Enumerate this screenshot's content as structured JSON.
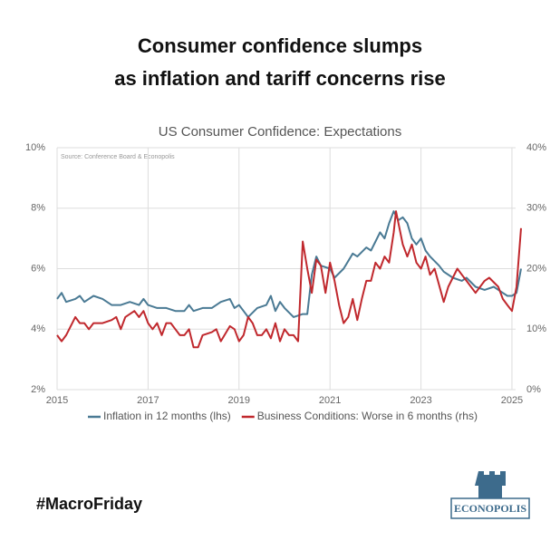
{
  "headline": [
    "Consumer confidence slumps",
    "as inflation and tariff concerns rise"
  ],
  "hashtag": "#MacroFriday",
  "logo": "ECONOPOLIS",
  "chart_data": {
    "type": "line",
    "title": "US Consumer Confidence: Expectations",
    "source": "Source: Conference Board & Econopolis",
    "xlim": [
      2015,
      2025.2
    ],
    "xticks": [
      2015,
      2017,
      2019,
      2021,
      2023,
      2025
    ],
    "ylim": [
      2,
      10
    ],
    "yticks": [
      {
        "value": 2,
        "label": "2%"
      },
      {
        "value": 4,
        "label": "4%"
      },
      {
        "value": 6,
        "label": "6%"
      },
      {
        "value": 8,
        "label": "8%"
      },
      {
        "value": 10,
        "label": "10%"
      }
    ],
    "y2lim": [
      0,
      40
    ],
    "y2ticks": [
      {
        "value": 0,
        "label": "0%"
      },
      {
        "value": 10,
        "label": "10%"
      },
      {
        "value": 20,
        "label": "20%"
      },
      {
        "value": 30,
        "label": "30%"
      },
      {
        "value": 40,
        "label": "40%"
      }
    ],
    "grid": true,
    "legend": "bottom",
    "series": [
      {
        "name": "Inflation in 12 months (lhs)",
        "color": "#4a7a94",
        "axis": "y",
        "x": [
          2015.0,
          2015.1,
          2015.2,
          2015.4,
          2015.5,
          2015.6,
          2015.8,
          2016.0,
          2016.2,
          2016.4,
          2016.6,
          2016.8,
          2016.9,
          2017.0,
          2017.2,
          2017.4,
          2017.6,
          2017.8,
          2017.9,
          2018.0,
          2018.2,
          2018.4,
          2018.6,
          2018.8,
          2018.9,
          2019.0,
          2019.1,
          2019.2,
          2019.4,
          2019.6,
          2019.7,
          2019.8,
          2019.9,
          2020.0,
          2020.2,
          2020.4,
          2020.5,
          2020.6,
          2020.7,
          2020.8,
          2021.0,
          2021.1,
          2021.3,
          2021.5,
          2021.6,
          2021.8,
          2021.9,
          2022.0,
          2022.1,
          2022.2,
          2022.3,
          2022.4,
          2022.5,
          2022.6,
          2022.7,
          2022.8,
          2022.9,
          2023.0,
          2023.1,
          2023.2,
          2023.4,
          2023.5,
          2023.7,
          2023.9,
          2024.0,
          2024.2,
          2024.4,
          2024.6,
          2024.8,
          2024.9,
          2025.0,
          2025.1,
          2025.2
        ],
        "values": [
          5.0,
          5.2,
          4.9,
          5.0,
          5.1,
          4.9,
          5.1,
          5.0,
          4.8,
          4.8,
          4.9,
          4.8,
          5.0,
          4.8,
          4.7,
          4.7,
          4.6,
          4.6,
          4.8,
          4.6,
          4.7,
          4.7,
          4.9,
          5.0,
          4.7,
          4.8,
          4.6,
          4.4,
          4.7,
          4.8,
          5.1,
          4.6,
          4.9,
          4.7,
          4.4,
          4.5,
          4.5,
          5.8,
          6.4,
          6.1,
          6.0,
          5.7,
          6.0,
          6.5,
          6.4,
          6.7,
          6.6,
          6.9,
          7.2,
          7.0,
          7.5,
          7.9,
          7.6,
          7.7,
          7.5,
          7.0,
          6.8,
          7.0,
          6.6,
          6.4,
          6.1,
          5.9,
          5.7,
          5.6,
          5.7,
          5.4,
          5.3,
          5.4,
          5.2,
          5.1,
          5.1,
          5.2,
          6.0
        ]
      },
      {
        "name": "Business Conditions: Worse in 6 months (rhs)",
        "color": "#c0282d",
        "axis": "y2",
        "x": [
          2015.0,
          2015.1,
          2015.2,
          2015.4,
          2015.5,
          2015.6,
          2015.7,
          2015.8,
          2016.0,
          2016.2,
          2016.3,
          2016.4,
          2016.5,
          2016.6,
          2016.7,
          2016.8,
          2016.9,
          2017.0,
          2017.1,
          2017.2,
          2017.3,
          2017.4,
          2017.5,
          2017.6,
          2017.7,
          2017.8,
          2017.9,
          2018.0,
          2018.1,
          2018.2,
          2018.4,
          2018.5,
          2018.6,
          2018.8,
          2018.9,
          2019.0,
          2019.1,
          2019.2,
          2019.3,
          2019.4,
          2019.5,
          2019.6,
          2019.7,
          2019.8,
          2019.9,
          2020.0,
          2020.1,
          2020.2,
          2020.3,
          2020.4,
          2020.5,
          2020.6,
          2020.7,
          2020.8,
          2020.9,
          2021.0,
          2021.1,
          2021.2,
          2021.3,
          2021.4,
          2021.5,
          2021.6,
          2021.7,
          2021.8,
          2021.9,
          2022.0,
          2022.1,
          2022.2,
          2022.3,
          2022.4,
          2022.45,
          2022.6,
          2022.7,
          2022.8,
          2022.9,
          2023.0,
          2023.1,
          2023.2,
          2023.3,
          2023.5,
          2023.6,
          2023.8,
          2023.9,
          2024.0,
          2024.2,
          2024.4,
          2024.5,
          2024.7,
          2024.8,
          2024.9,
          2025.0,
          2025.1,
          2025.2
        ],
        "values": [
          9,
          8,
          9,
          12,
          11,
          11,
          10,
          11,
          11,
          11.5,
          12,
          10,
          12,
          12.5,
          13,
          12,
          13,
          11,
          10,
          11,
          9,
          11,
          11,
          10,
          9,
          9,
          10,
          7,
          7,
          9,
          9.5,
          10,
          8,
          10.5,
          10,
          8,
          9,
          12,
          11,
          9,
          9,
          10,
          8.5,
          11,
          8,
          10,
          9,
          9,
          8,
          24.5,
          20,
          16,
          21.5,
          20.5,
          16,
          21,
          18,
          14,
          11,
          12,
          15,
          11.5,
          15,
          18,
          18,
          21,
          20,
          22,
          21,
          26,
          29.5,
          24,
          22,
          24,
          21,
          20,
          22,
          19,
          20,
          14.5,
          17,
          20,
          19,
          18,
          16,
          18,
          18.5,
          17,
          15,
          14,
          13,
          17,
          26.7
        ]
      }
    ]
  }
}
